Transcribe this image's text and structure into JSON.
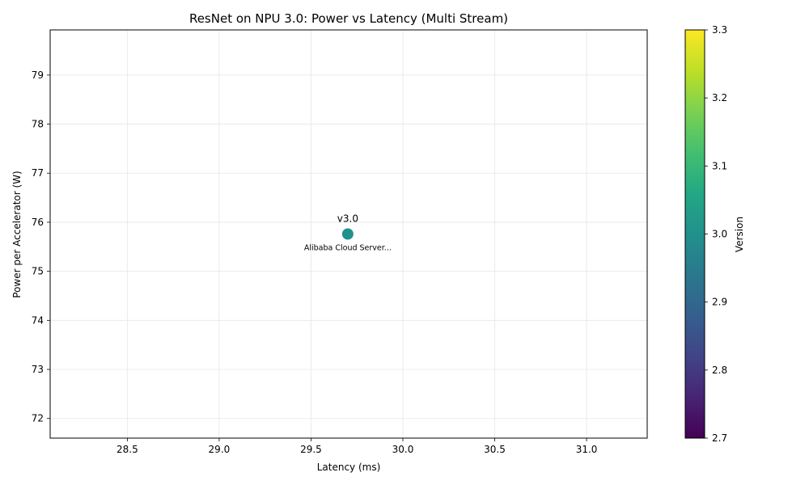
{
  "chart_data": {
    "type": "scatter",
    "title": "ResNet on NPU 3.0: Power vs Latency (Multi Stream)",
    "xlabel": "Latency (ms)",
    "ylabel": "Power per Accelerator (W)",
    "xlim": [
      28.08,
      31.33
    ],
    "ylim": [
      71.6,
      79.92
    ],
    "x_ticks": [
      28.5,
      29.0,
      29.5,
      30.0,
      30.5,
      31.0
    ],
    "x_tick_labels": [
      "28.5",
      "29.0",
      "29.5",
      "30.0",
      "30.5",
      "31.0"
    ],
    "y_ticks": [
      72,
      73,
      74,
      75,
      76,
      77,
      78,
      79
    ],
    "y_tick_labels": [
      "72",
      "73",
      "74",
      "75",
      "76",
      "77",
      "78",
      "79"
    ],
    "grid": true,
    "points": [
      {
        "x": 29.7,
        "y": 75.76,
        "version": 3.0,
        "label": "v3.0",
        "sublabel": "Alibaba Cloud Server..."
      }
    ],
    "colorbar": {
      "label": "Version",
      "colormap": "viridis",
      "min": 2.7,
      "max": 3.3,
      "ticks": [
        2.7,
        2.8,
        2.9,
        3.0,
        3.1,
        3.2,
        3.3
      ],
      "tick_labels": [
        "2.7",
        "2.8",
        "2.9",
        "3.0",
        "3.1",
        "3.2",
        "3.3"
      ]
    }
  }
}
